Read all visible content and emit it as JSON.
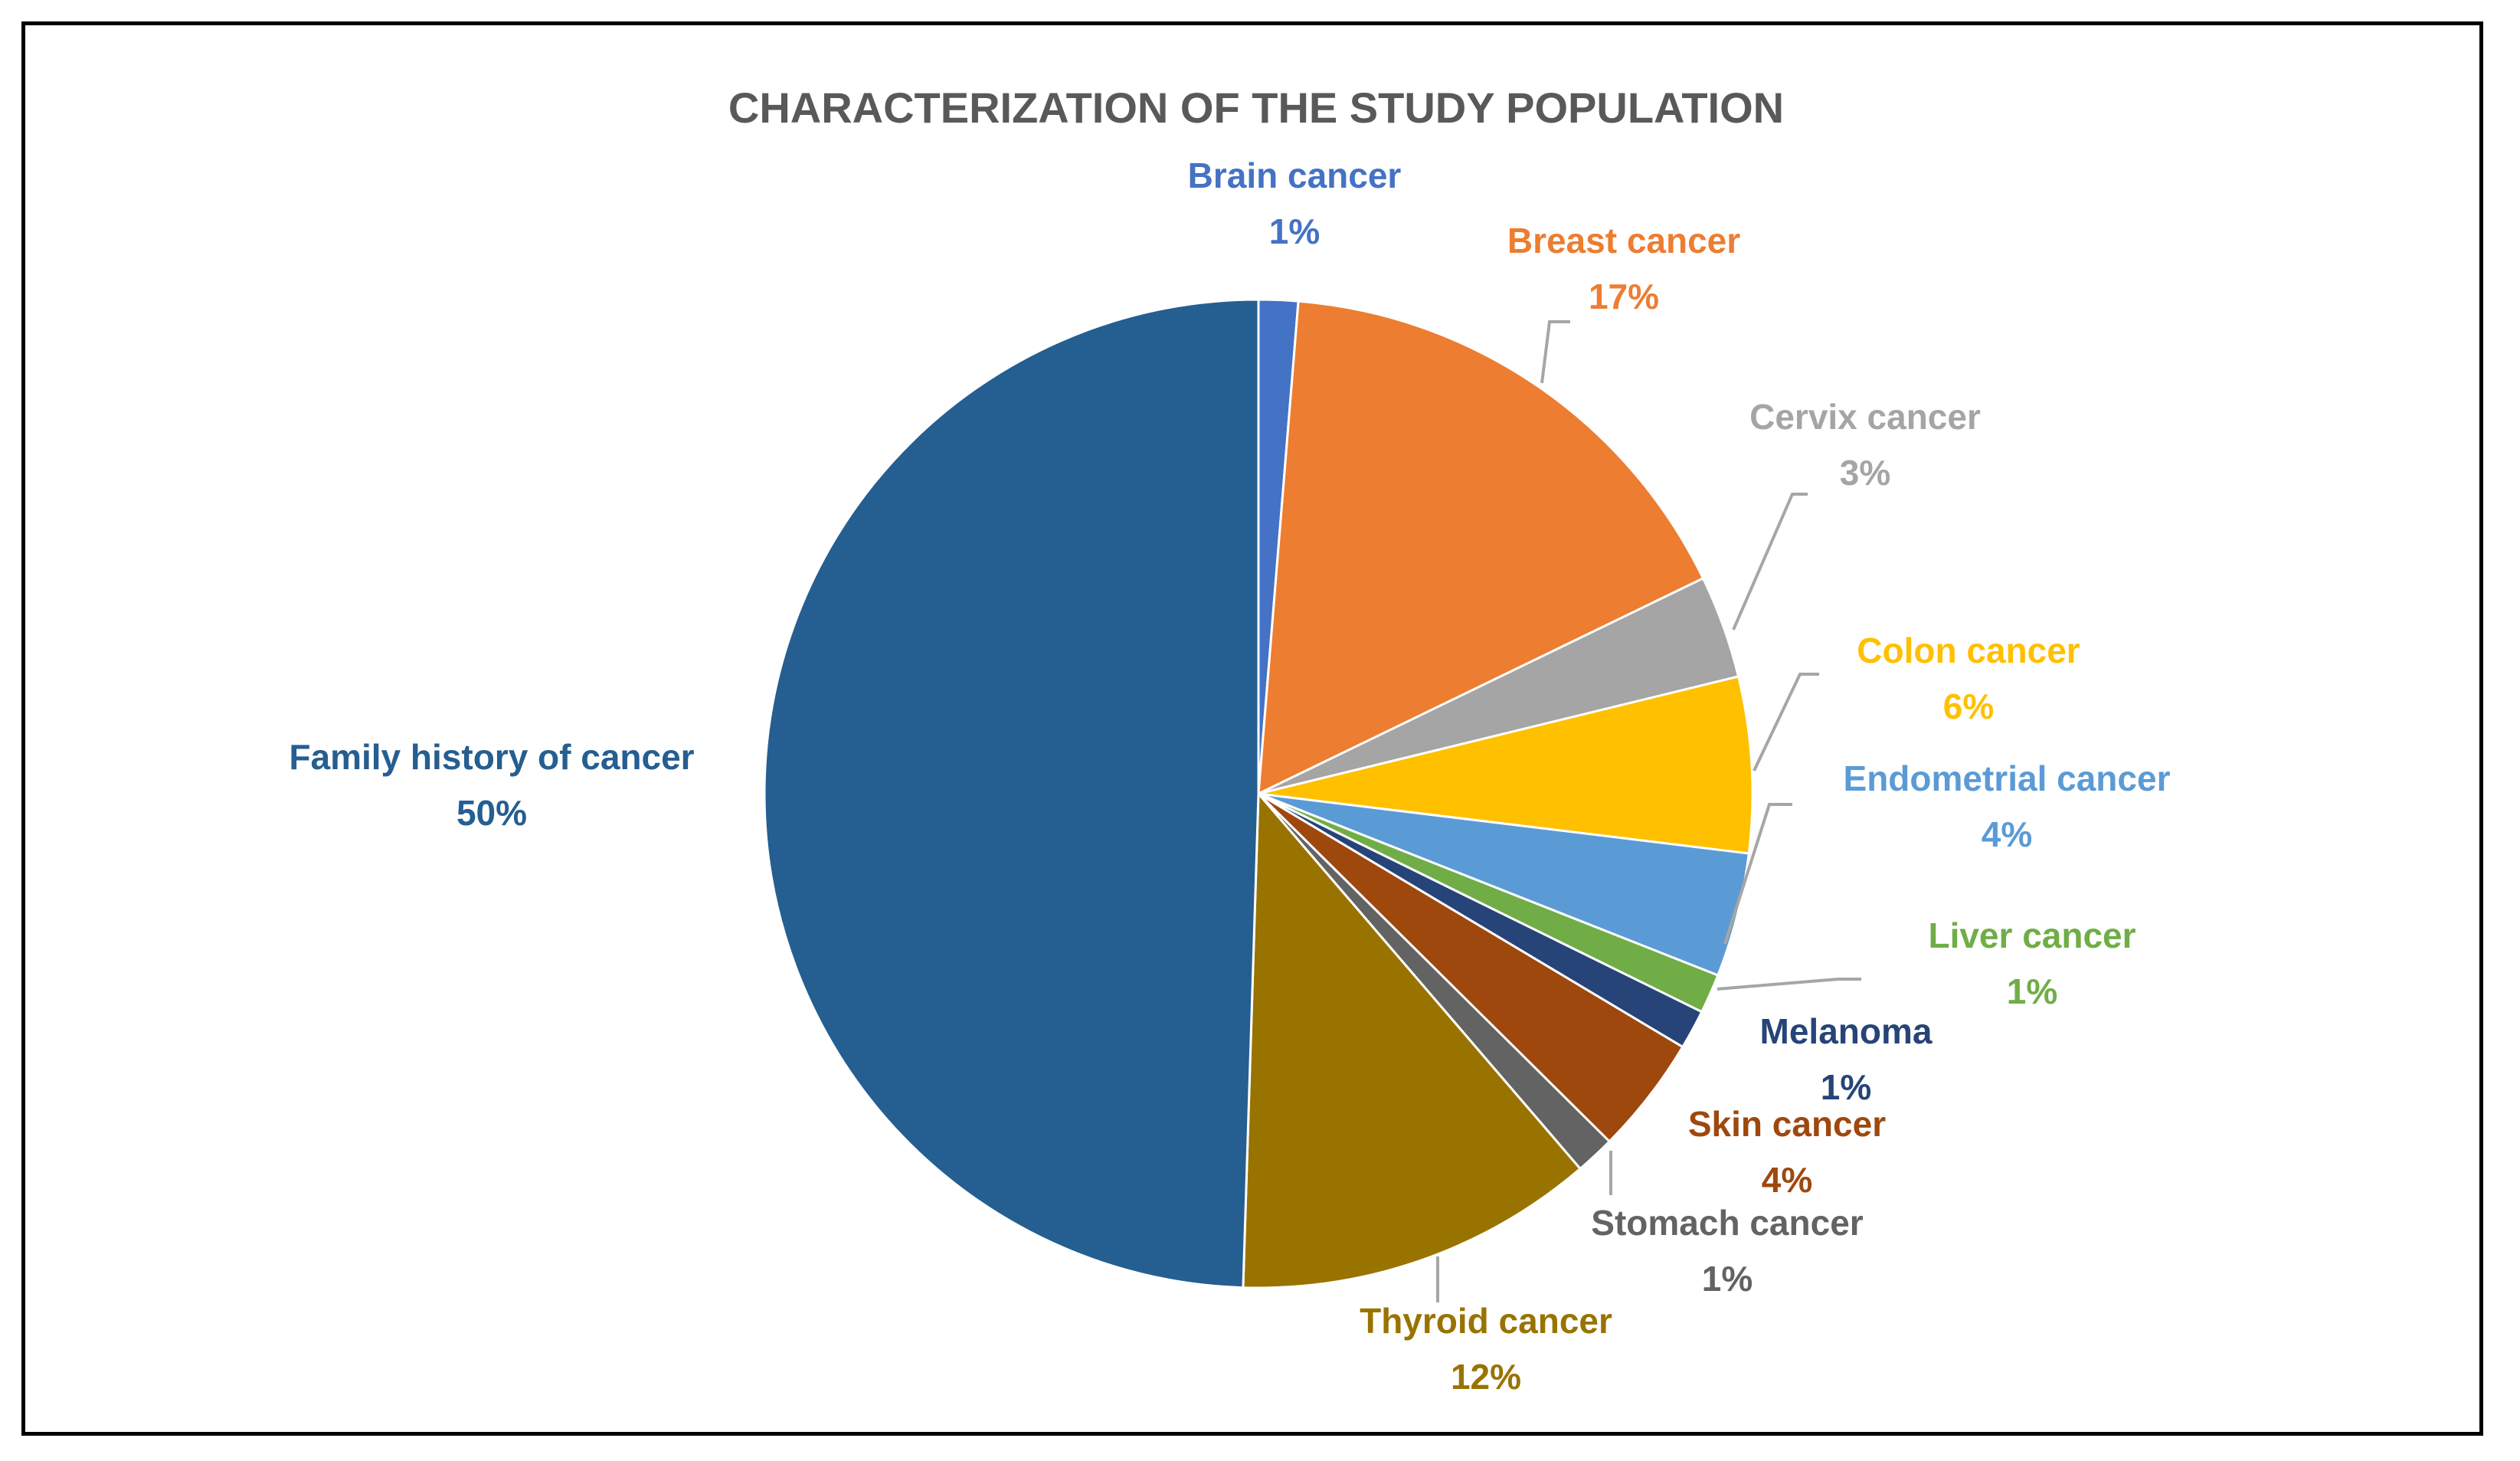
{
  "chart_data": {
    "type": "pie",
    "title": "CHARACTERIZATION OF THE STUDY POPULATION",
    "start_angle_deg": 0,
    "direction": "clockwise",
    "slices": [
      {
        "name": "Brain cancer",
        "value": 1.3,
        "label_pct": "1%",
        "color": "#4472C4"
      },
      {
        "name": "Breast cancer",
        "value": 16.7,
        "label_pct": "17%",
        "color": "#ED7D31"
      },
      {
        "name": "Cervix cancer",
        "value": 3.4,
        "label_pct": "3%",
        "color": "#A5A5A5"
      },
      {
        "name": "Colon cancer",
        "value": 5.8,
        "label_pct": "6%",
        "color": "#FFC000"
      },
      {
        "name": "Endometrial cancer",
        "value": 4.1,
        "label_pct": "4%",
        "color": "#5B9BD5"
      },
      {
        "name": "Liver cancer",
        "value": 1.3,
        "label_pct": "1%",
        "color": "#70AD47"
      },
      {
        "name": "Melanoma",
        "value": 1.3,
        "label_pct": "1%",
        "color": "#264478"
      },
      {
        "name": "Skin cancer",
        "value": 3.9,
        "label_pct": "4%",
        "color": "#9E480E"
      },
      {
        "name": "Stomach cancer",
        "value": 1.3,
        "label_pct": "1%",
        "color": "#636363"
      },
      {
        "name": "Thyroid cancer",
        "value": 11.9,
        "label_pct": "12%",
        "color": "#997300"
      },
      {
        "name": "Family history of cancer",
        "value": 50.0,
        "label_pct": "50%",
        "color": "#255E91"
      }
    ],
    "legend": "none",
    "data_labels": "category name and percentage, outside with leader lines"
  }
}
